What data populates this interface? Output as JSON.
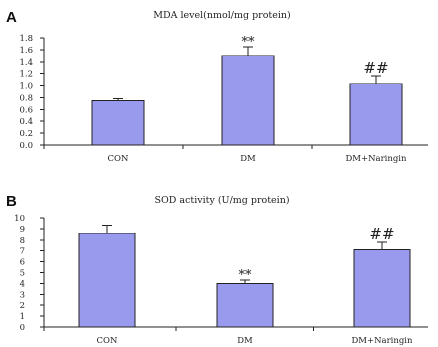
{
  "chart_data": [
    {
      "panel_label": "A",
      "type": "bar",
      "title": "MDA level(nmol/mg protein)",
      "categories": [
        "CON",
        "DM",
        "DM+Naringin"
      ],
      "values": [
        0.75,
        1.5,
        1.03
      ],
      "errors": [
        0.03,
        0.15,
        0.13
      ],
      "annotations": [
        "",
        "**",
        "##"
      ],
      "yticks": [
        "0.0",
        "0.2",
        "0.4",
        "0.6",
        "0.8",
        "1.0",
        "1.2",
        "1.4",
        "1.6",
        "1.8"
      ],
      "ylim": [
        0,
        1.8
      ],
      "bar_color": "#9999ee",
      "grid": false
    },
    {
      "panel_label": "B",
      "type": "bar",
      "title": "SOD activity (U/mg protein)",
      "categories": [
        "CON",
        "DM",
        "DM+Naringin"
      ],
      "values": [
        8.6,
        4.0,
        7.1
      ],
      "errors": [
        0.7,
        0.3,
        0.7
      ],
      "annotations": [
        "",
        "**",
        "##"
      ],
      "yticks": [
        "0",
        "1",
        "2",
        "3",
        "4",
        "5",
        "6",
        "7",
        "8",
        "9",
        "10"
      ],
      "ylim": [
        0,
        10
      ],
      "bar_color": "#9999ee",
      "grid": false
    }
  ]
}
